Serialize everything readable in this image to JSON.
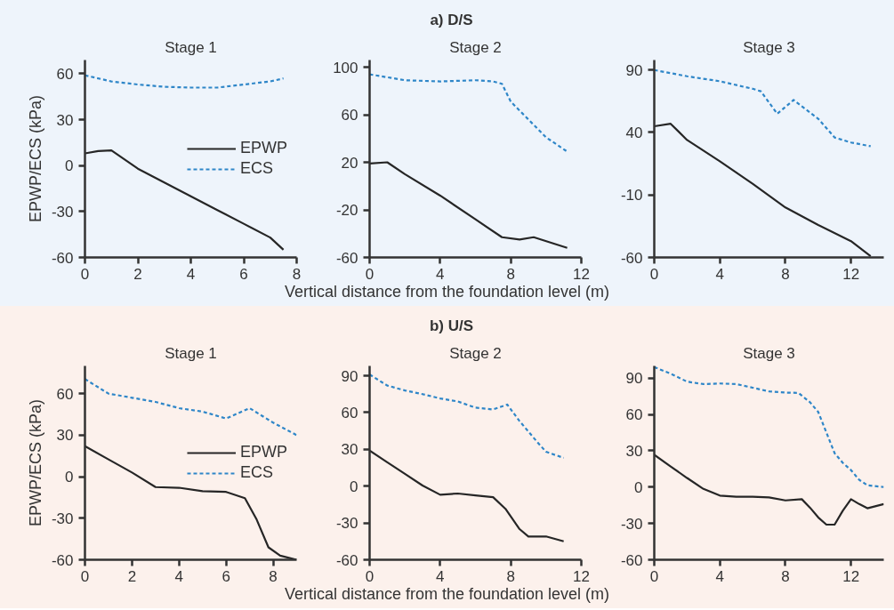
{
  "chart_data": [
    {
      "type": "line",
      "title": "Stage 1",
      "ylabel": "EPWP/ECS (kPa)",
      "xlim": [
        0,
        8
      ],
      "xticks": [
        0,
        2,
        4,
        6,
        8
      ],
      "ylim": [
        -60,
        69
      ],
      "yticks": [
        -60,
        -30,
        0,
        30,
        60
      ],
      "legend": "right",
      "grid": false,
      "series": [
        {
          "name": "EPWP",
          "color": "#262626",
          "line_style": "solid",
          "x": [
            0,
            0.5,
            1,
            2,
            3,
            4,
            5,
            6,
            7,
            7.5
          ],
          "values": [
            8,
            9.5,
            10,
            -2,
            -11,
            -20,
            -29,
            -38,
            -47,
            -55
          ]
        },
        {
          "name": "ECS",
          "color": "#2e86c8",
          "line_style": "dashed",
          "x": [
            0,
            1,
            2,
            3,
            4,
            5,
            6,
            7,
            7.5
          ],
          "values": [
            59,
            55,
            53,
            51.5,
            51,
            51,
            53,
            55,
            57
          ]
        }
      ]
    },
    {
      "type": "line",
      "title": "Stage 2",
      "subtitle": "a) D/S",
      "xlabel": "Vertical distance from the foundation level (m)",
      "xlim": [
        0,
        12
      ],
      "xticks": [
        0,
        4,
        8,
        12
      ],
      "ylim": [
        -60,
        106
      ],
      "yticks": [
        -60,
        -20,
        20,
        60,
        100
      ],
      "grid": false,
      "series": [
        {
          "color": "#262626",
          "line_style": "solid",
          "x": [
            0,
            1,
            2,
            4,
            6,
            7.5,
            8.5,
            9.3,
            11.2
          ],
          "values": [
            19,
            20,
            10,
            -8,
            -28,
            -43,
            -45,
            -43,
            -52
          ]
        },
        {
          "color": "#2e86c8",
          "line_style": "dashed",
          "x": [
            0,
            2,
            4,
            6,
            7,
            7.5,
            8,
            9,
            10,
            11.2
          ],
          "values": [
            94,
            89,
            88,
            89,
            88,
            86,
            71,
            56,
            41,
            29
          ]
        }
      ]
    },
    {
      "type": "line",
      "title": "Stage 3",
      "xlim": [
        0,
        14
      ],
      "xticks": [
        0,
        4,
        8,
        12
      ],
      "ylim": [
        -60,
        98
      ],
      "yticks": [
        -60,
        -10,
        40,
        90
      ],
      "grid": false,
      "series": [
        {
          "color": "#262626",
          "line_style": "solid",
          "x": [
            0,
            1,
            2,
            4,
            6,
            8,
            10,
            12,
            13.2
          ],
          "values": [
            45,
            47,
            34,
            17,
            -1,
            -20,
            -34,
            -47,
            -59
          ]
        },
        {
          "color": "#2e86c8",
          "line_style": "dashed",
          "x": [
            0,
            2,
            4,
            6,
            6.5,
            7.5,
            8.5,
            10,
            11,
            12,
            13.2
          ],
          "values": [
            90,
            85,
            81,
            75,
            73,
            55,
            66,
            51,
            36,
            32,
            29
          ]
        }
      ]
    },
    {
      "type": "line",
      "title": "Stage 1",
      "ylabel": "EPWP/ECS (kPa)",
      "xlim": [
        0,
        9
      ],
      "xticks": [
        0,
        2,
        4,
        6,
        8
      ],
      "ylim": [
        -60,
        80
      ],
      "yticks": [
        -60,
        -30,
        0,
        30,
        60
      ],
      "legend": "right",
      "grid": false,
      "series": [
        {
          "name": "EPWP",
          "color": "#262626",
          "line_style": "solid",
          "x": [
            0,
            1,
            2,
            3,
            4,
            5,
            6,
            6.8,
            7.3,
            7.8,
            8.3,
            9
          ],
          "values": [
            22,
            12.5,
            3,
            -7.5,
            -8,
            -10.5,
            -11,
            -15.5,
            -31,
            -51,
            -57,
            -60
          ]
        },
        {
          "name": "ECS",
          "color": "#2e86c8",
          "line_style": "dashed",
          "x": [
            0,
            1,
            2,
            3,
            4,
            5,
            6,
            7,
            8,
            9
          ],
          "values": [
            70.5,
            60,
            57,
            54,
            49.5,
            47,
            42,
            49.5,
            39,
            30
          ]
        }
      ]
    },
    {
      "type": "line",
      "title": "Stage 2",
      "subtitle": "b) U/S",
      "xlabel": "Vertical distance from the foundation level (m)",
      "xlim": [
        0,
        12
      ],
      "xticks": [
        0,
        4,
        8,
        12
      ],
      "ylim": [
        -60,
        98
      ],
      "yticks": [
        -60,
        -30,
        0,
        30,
        60,
        90
      ],
      "grid": false,
      "series": [
        {
          "color": "#262626",
          "line_style": "solid",
          "x": [
            0,
            1,
            2,
            3,
            4,
            5,
            6,
            7,
            7.7,
            8.5,
            9,
            10,
            11
          ],
          "values": [
            29,
            19.5,
            10,
            0.5,
            -7,
            -6,
            -7.5,
            -9,
            -18.5,
            -35,
            -41,
            -41,
            -45
          ]
        },
        {
          "color": "#2e86c8",
          "line_style": "dashed",
          "x": [
            0,
            1,
            2,
            3,
            4,
            5,
            6,
            7,
            7.8,
            8.5,
            9.5,
            10,
            11
          ],
          "values": [
            91,
            82,
            78,
            75,
            71.5,
            69,
            64,
            62.5,
            66.5,
            53,
            36,
            28,
            23
          ]
        }
      ]
    },
    {
      "type": "line",
      "title": "Stage 3",
      "xlim": [
        0,
        14
      ],
      "xticks": [
        0,
        4,
        8,
        12
      ],
      "ylim": [
        -60,
        100
      ],
      "yticks": [
        -60,
        -30,
        0,
        30,
        60,
        90
      ],
      "grid": false,
      "series": [
        {
          "color": "#262626",
          "line_style": "solid",
          "x": [
            0,
            1,
            2,
            3,
            4,
            5,
            6,
            7,
            8,
            9,
            9.5,
            10,
            10.5,
            11,
            11.5,
            12,
            12.5,
            13,
            14
          ],
          "values": [
            26.6,
            17,
            7.5,
            -1.5,
            -7,
            -8,
            -8,
            -8.5,
            -11,
            -10,
            -17,
            -25,
            -31,
            -31,
            -19.5,
            -10,
            -14,
            -17.5,
            -14
          ]
        },
        {
          "color": "#2e86c8",
          "line_style": "dashed",
          "x": [
            0,
            1,
            2,
            3,
            4,
            5,
            6,
            7,
            8,
            8.8,
            9.5,
            10,
            10.5,
            11,
            11.5,
            12,
            12.5,
            13,
            14
          ],
          "values": [
            99,
            93.6,
            87,
            85,
            85.5,
            85,
            82,
            79,
            78,
            77.7,
            70,
            62,
            45,
            28,
            20,
            14,
            6,
            1.5,
            0
          ]
        }
      ]
    }
  ]
}
